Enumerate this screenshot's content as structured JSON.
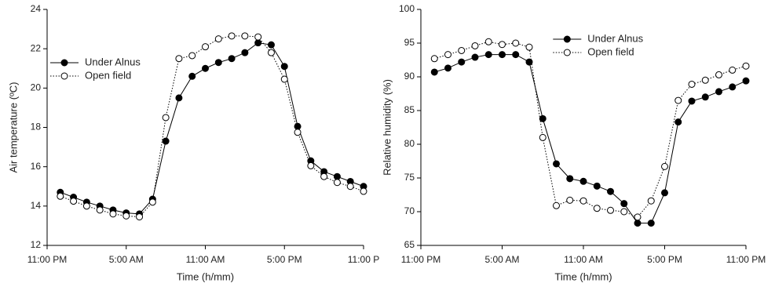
{
  "chart_data": [
    {
      "type": "line",
      "xlabel": "Time (h/mm)",
      "ylabel": "Air temperature (ºC)",
      "x": [
        1,
        2,
        3,
        4,
        5,
        6,
        7,
        8,
        9,
        10,
        11,
        12,
        13,
        14,
        15,
        16,
        17,
        18,
        19,
        20,
        21,
        22,
        23,
        24
      ],
      "xlim": [
        0,
        24
      ],
      "xticks": [
        {
          "value": 0,
          "label": "11:00 PM"
        },
        {
          "value": 6,
          "label": "5:00 AM"
        },
        {
          "value": 12,
          "label": "11:00 AM"
        },
        {
          "value": 18,
          "label": "5:00 PM"
        },
        {
          "value": 24,
          "label": "11:00 P"
        }
      ],
      "ylim": [
        12,
        24
      ],
      "yticks": [
        12,
        14,
        16,
        18,
        20,
        22,
        24
      ],
      "legend": "upper left",
      "series": [
        {
          "name": "Under Alnus",
          "color": "#000000",
          "marker": "filled",
          "dash": "solid",
          "values": [
            14.7,
            14.45,
            14.2,
            14.0,
            13.8,
            13.65,
            13.6,
            14.35,
            17.3,
            19.5,
            20.6,
            21.0,
            21.3,
            21.5,
            21.8,
            22.3,
            22.2,
            21.1,
            18.05,
            16.3,
            15.75,
            15.5,
            15.25,
            15.0
          ]
        },
        {
          "name": "Open field",
          "color": "#000000",
          "marker": "open",
          "dash": "dotted",
          "values": [
            14.5,
            14.25,
            14.0,
            13.8,
            13.6,
            13.5,
            13.45,
            14.2,
            18.5,
            21.5,
            21.65,
            22.1,
            22.5,
            22.65,
            22.65,
            22.6,
            21.8,
            20.45,
            17.75,
            16.05,
            15.5,
            15.2,
            15.0,
            14.75
          ]
        }
      ]
    },
    {
      "type": "line",
      "xlabel": "Time (h/mm)",
      "ylabel": "Relative humidity (%)",
      "x": [
        1,
        2,
        3,
        4,
        5,
        6,
        7,
        8,
        9,
        10,
        11,
        12,
        13,
        14,
        15,
        16,
        17,
        18,
        19,
        20,
        21,
        22,
        23,
        24
      ],
      "xlim": [
        0,
        24
      ],
      "xticks": [
        {
          "value": 0,
          "label": "11:00 PM"
        },
        {
          "value": 6,
          "label": "5:00 AM"
        },
        {
          "value": 12,
          "label": "11:00 AM"
        },
        {
          "value": 18,
          "label": "5:00 PM"
        },
        {
          "value": 24,
          "label": "11:00 PM"
        }
      ],
      "ylim": [
        65,
        100
      ],
      "yticks": [
        65,
        70,
        75,
        80,
        85,
        90,
        95,
        100
      ],
      "legend": "upper center",
      "series": [
        {
          "name": "Under Alnus",
          "color": "#000000",
          "marker": "filled",
          "dash": "solid",
          "values": [
            90.7,
            91.3,
            92.2,
            92.9,
            93.3,
            93.3,
            93.3,
            92.2,
            83.8,
            77.1,
            74.9,
            74.5,
            73.8,
            73.0,
            71.2,
            68.3,
            68.3,
            72.8,
            83.3,
            86.4,
            87.0,
            87.8,
            88.5,
            89.4
          ]
        },
        {
          "name": "Open field",
          "color": "#000000",
          "marker": "open",
          "dash": "dotted",
          "values": [
            92.7,
            93.3,
            93.9,
            94.6,
            95.2,
            94.8,
            95.0,
            94.4,
            81.0,
            70.9,
            71.7,
            71.6,
            70.5,
            70.2,
            70.0,
            69.2,
            71.6,
            76.7,
            86.5,
            88.9,
            89.5,
            90.3,
            91.0,
            91.6
          ]
        }
      ]
    }
  ]
}
